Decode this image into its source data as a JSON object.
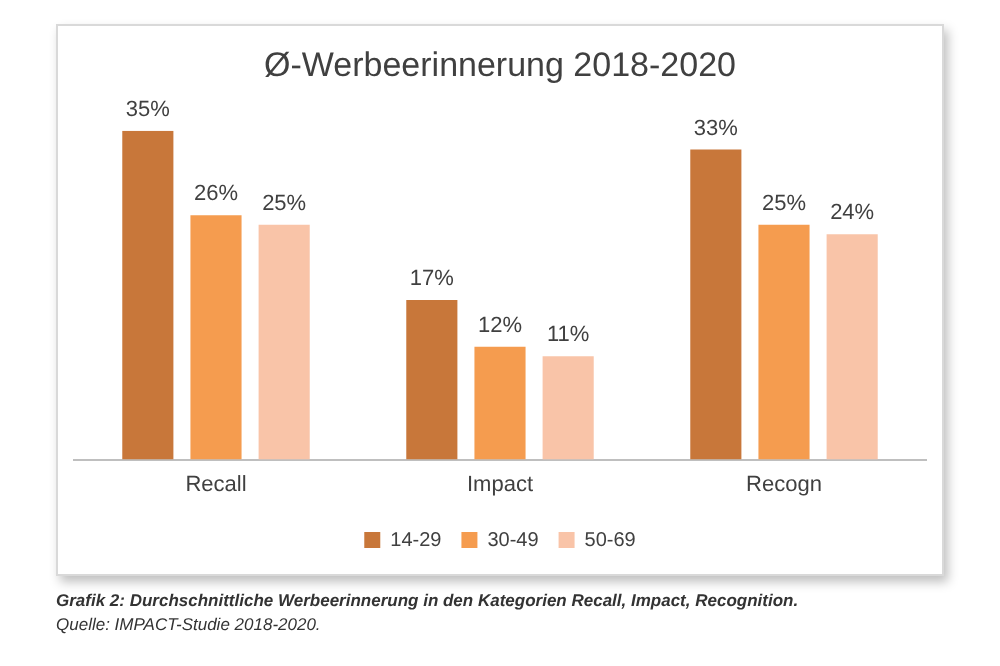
{
  "chart_data": {
    "type": "bar",
    "title": "Ø-Werbeerinnerung 2018-2020",
    "categories": [
      "Recall",
      "Impact",
      "Recogn"
    ],
    "series": [
      {
        "name": "14-29",
        "color": "#c8773a",
        "values": [
          35,
          17,
          33
        ],
        "value_labels": [
          "35%",
          "17%",
          "33%"
        ]
      },
      {
        "name": "30-49",
        "color": "#f59c4f",
        "values": [
          26,
          12,
          25
        ],
        "value_labels": [
          "26%",
          "12%",
          "25%"
        ]
      },
      {
        "name": "50-69",
        "color": "#f9c4a8",
        "values": [
          25,
          11,
          24
        ],
        "value_labels": [
          "25%",
          "11%",
          "24%"
        ]
      }
    ],
    "legend": "bottom",
    "grid": false,
    "annotations": [
      "Grafik 2: Durchschnittliche Werbeerinnerung in den Kategorien Recall, Impact, Recognition.",
      "Quelle: IMPACT-Studie 2018-2020."
    ]
  }
}
